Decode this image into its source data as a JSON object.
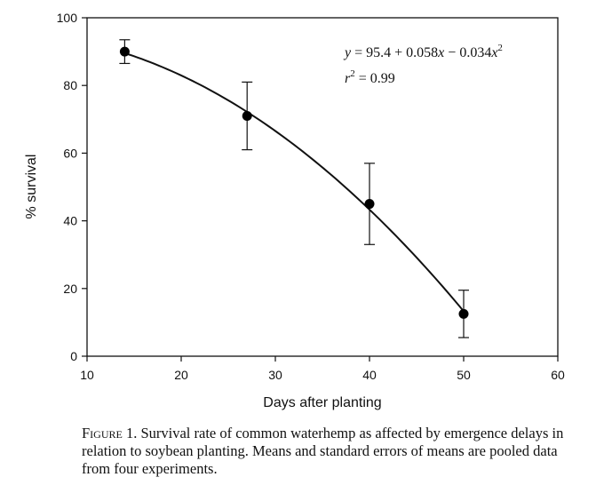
{
  "chart_data": {
    "type": "scatter",
    "xlabel": "Days after planting",
    "ylabel": "% survival",
    "xlim": [
      10,
      60
    ],
    "ylim": [
      0,
      100
    ],
    "x_ticks": [
      10,
      20,
      30,
      40,
      50,
      60
    ],
    "y_ticks": [
      0,
      20,
      40,
      60,
      80,
      100
    ],
    "grid": false,
    "points": [
      {
        "x": 14,
        "y": 90,
        "err_low": 86.5,
        "err_high": 93.5
      },
      {
        "x": 27,
        "y": 71,
        "err_low": 61,
        "err_high": 81
      },
      {
        "x": 40,
        "y": 45,
        "err_low": 33,
        "err_high": 57
      },
      {
        "x": 50,
        "y": 12.5,
        "err_low": 5.5,
        "err_high": 19.5
      }
    ],
    "fit": {
      "type": "quadratic",
      "a": 95.4,
      "b": 0.058,
      "c": -0.034,
      "x_range": [
        14,
        50
      ]
    },
    "annotation": {
      "equation": {
        "y": "y",
        "eq_sign": " = ",
        "a": "95.4",
        "plus": " + ",
        "b": "0.058",
        "x1": "x",
        "minus": " − ",
        "c": "0.034",
        "x2": "x",
        "pow2": "2"
      },
      "r2": {
        "r": "r",
        "pow": "2",
        "value": " = 0.99"
      }
    }
  },
  "caption": {
    "label": "Figure 1.",
    "text": " Survival rate of common waterhemp as affected by emergence delays in relation to soybean planting. Means and standard errors of means are pooled data from four experiments."
  }
}
